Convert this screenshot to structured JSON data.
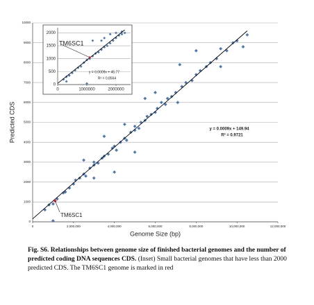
{
  "chart_data": [
    {
      "type": "scatter",
      "x_label": "Genome Size (bp)",
      "y_label": "Predicted CDS",
      "color": "#4a78b5",
      "grid": true,
      "xlim": [
        0,
        12000000
      ],
      "ylim": [
        0,
        10000
      ],
      "xticks": [
        0,
        {
          "value": 2000000,
          "label": "2,000,000"
        },
        {
          "value": 4000000,
          "label": "4,000,000"
        },
        {
          "value": 6000000,
          "label": "6,000,000"
        },
        {
          "value": 8000000,
          "label": "8,000,000"
        },
        {
          "value": 10000000,
          "label": "10,000,000"
        },
        {
          "value": 12000000,
          "label": "12,000,000"
        }
      ],
      "yticks": [
        0,
        1000,
        2000,
        3000,
        4000,
        5000,
        6000,
        7000,
        8000,
        9000,
        10000
      ],
      "x": [
        600000,
        800000,
        1000000,
        1200000,
        1500000,
        1600000,
        1800000,
        2000000,
        2100000,
        2300000,
        2500000,
        2600000,
        2800000,
        3000000,
        3000000,
        3200000,
        3400000,
        3500000,
        3700000,
        3900000,
        4000000,
        4100000,
        4300000,
        4500000,
        4600000,
        4800000,
        5000000,
        5000000,
        5200000,
        5300000,
        5500000,
        5600000,
        5800000,
        6000000,
        6100000,
        6300000,
        6500000,
        6600000,
        6800000,
        7000000,
        7100000,
        7300000,
        7500000,
        7800000,
        8000000,
        8200000,
        8500000,
        8700000,
        9000000,
        9200000,
        9500000,
        9800000,
        10000000,
        10300000,
        10500000,
        8000000,
        7200000,
        9200000,
        3000000,
        4000000,
        5000000,
        1000000,
        3500000,
        6000000,
        2500000,
        5500000,
        4500000
      ],
      "values": [
        600,
        850,
        900,
        1150,
        1450,
        1500,
        1700,
        1900,
        2100,
        2200,
        2400,
        2300,
        2700,
        2850,
        3000,
        2950,
        3200,
        3300,
        3400,
        3700,
        3800,
        3600,
        4000,
        4200,
        4100,
        4500,
        4600,
        4800,
        4700,
        5000,
        5100,
        5300,
        5400,
        5500,
        5700,
        6000,
        5900,
        6200,
        6300,
        6500,
        6000,
        6800,
        7000,
        7100,
        7400,
        7600,
        7800,
        8000,
        8200,
        8700,
        8600,
        9000,
        9100,
        8800,
        9400,
        8600,
        7900,
        7800,
        2200,
        2500,
        3500,
        50,
        4300,
        6500,
        3100,
        6200,
        4900
      ],
      "trendline": {
        "slope": 0.0009,
        "intercept": 149.94,
        "label": "y = 0.0009x + 149.94",
        "r2_label": "R² = 0.9721"
      },
      "highlight": {
        "label": "TM6SC1",
        "x": 1100000,
        "y": 1050,
        "color": "#e02020"
      }
    },
    {
      "type": "scatter",
      "color": "#4a78b5",
      "grid": true,
      "xlim": [
        0,
        2500000
      ],
      "ylim": [
        0,
        2200
      ],
      "xticks": [
        0,
        1000000,
        2000000
      ],
      "yticks": [
        0,
        500,
        1000,
        1500,
        2000
      ],
      "x": [
        200000,
        300000,
        400000,
        500000,
        600000,
        700000,
        800000,
        900000,
        1000000,
        1100000,
        1200000,
        1300000,
        1400000,
        1500000,
        1600000,
        1700000,
        1800000,
        1900000,
        2000000,
        2100000,
        2200000,
        2300000,
        2000000,
        1800000,
        1600000,
        2200000,
        1200000,
        1500000,
        300000,
        1000000
      ],
      "values": [
        200,
        300,
        350,
        450,
        550,
        650,
        700,
        850,
        950,
        1000,
        1100,
        1200,
        1250,
        1350,
        1450,
        1500,
        1600,
        1700,
        1800,
        1900,
        1950,
        2000,
        2000,
        1950,
        1800,
        2050,
        1700,
        1700,
        120,
        40
      ],
      "trendline": {
        "slope": 0.0009,
        "intercept": 45.77,
        "label": "y = 0.0009x + 45.77",
        "r2_label": "R² = 0.8564"
      },
      "highlight": {
        "label": "TM6SC1",
        "x": 1100000,
        "y": 1050,
        "color": "#e02020"
      }
    }
  ],
  "caption": {
    "bold": "Fig. S6.  Relationships between genome size of finished bacterial genomes and the number of predicted coding DNA sequences CDS.",
    "text": "(Inset) Small bacterial genomes that have less than 2000 predicted CDS. The TM6SC1 genome is marked in red"
  }
}
